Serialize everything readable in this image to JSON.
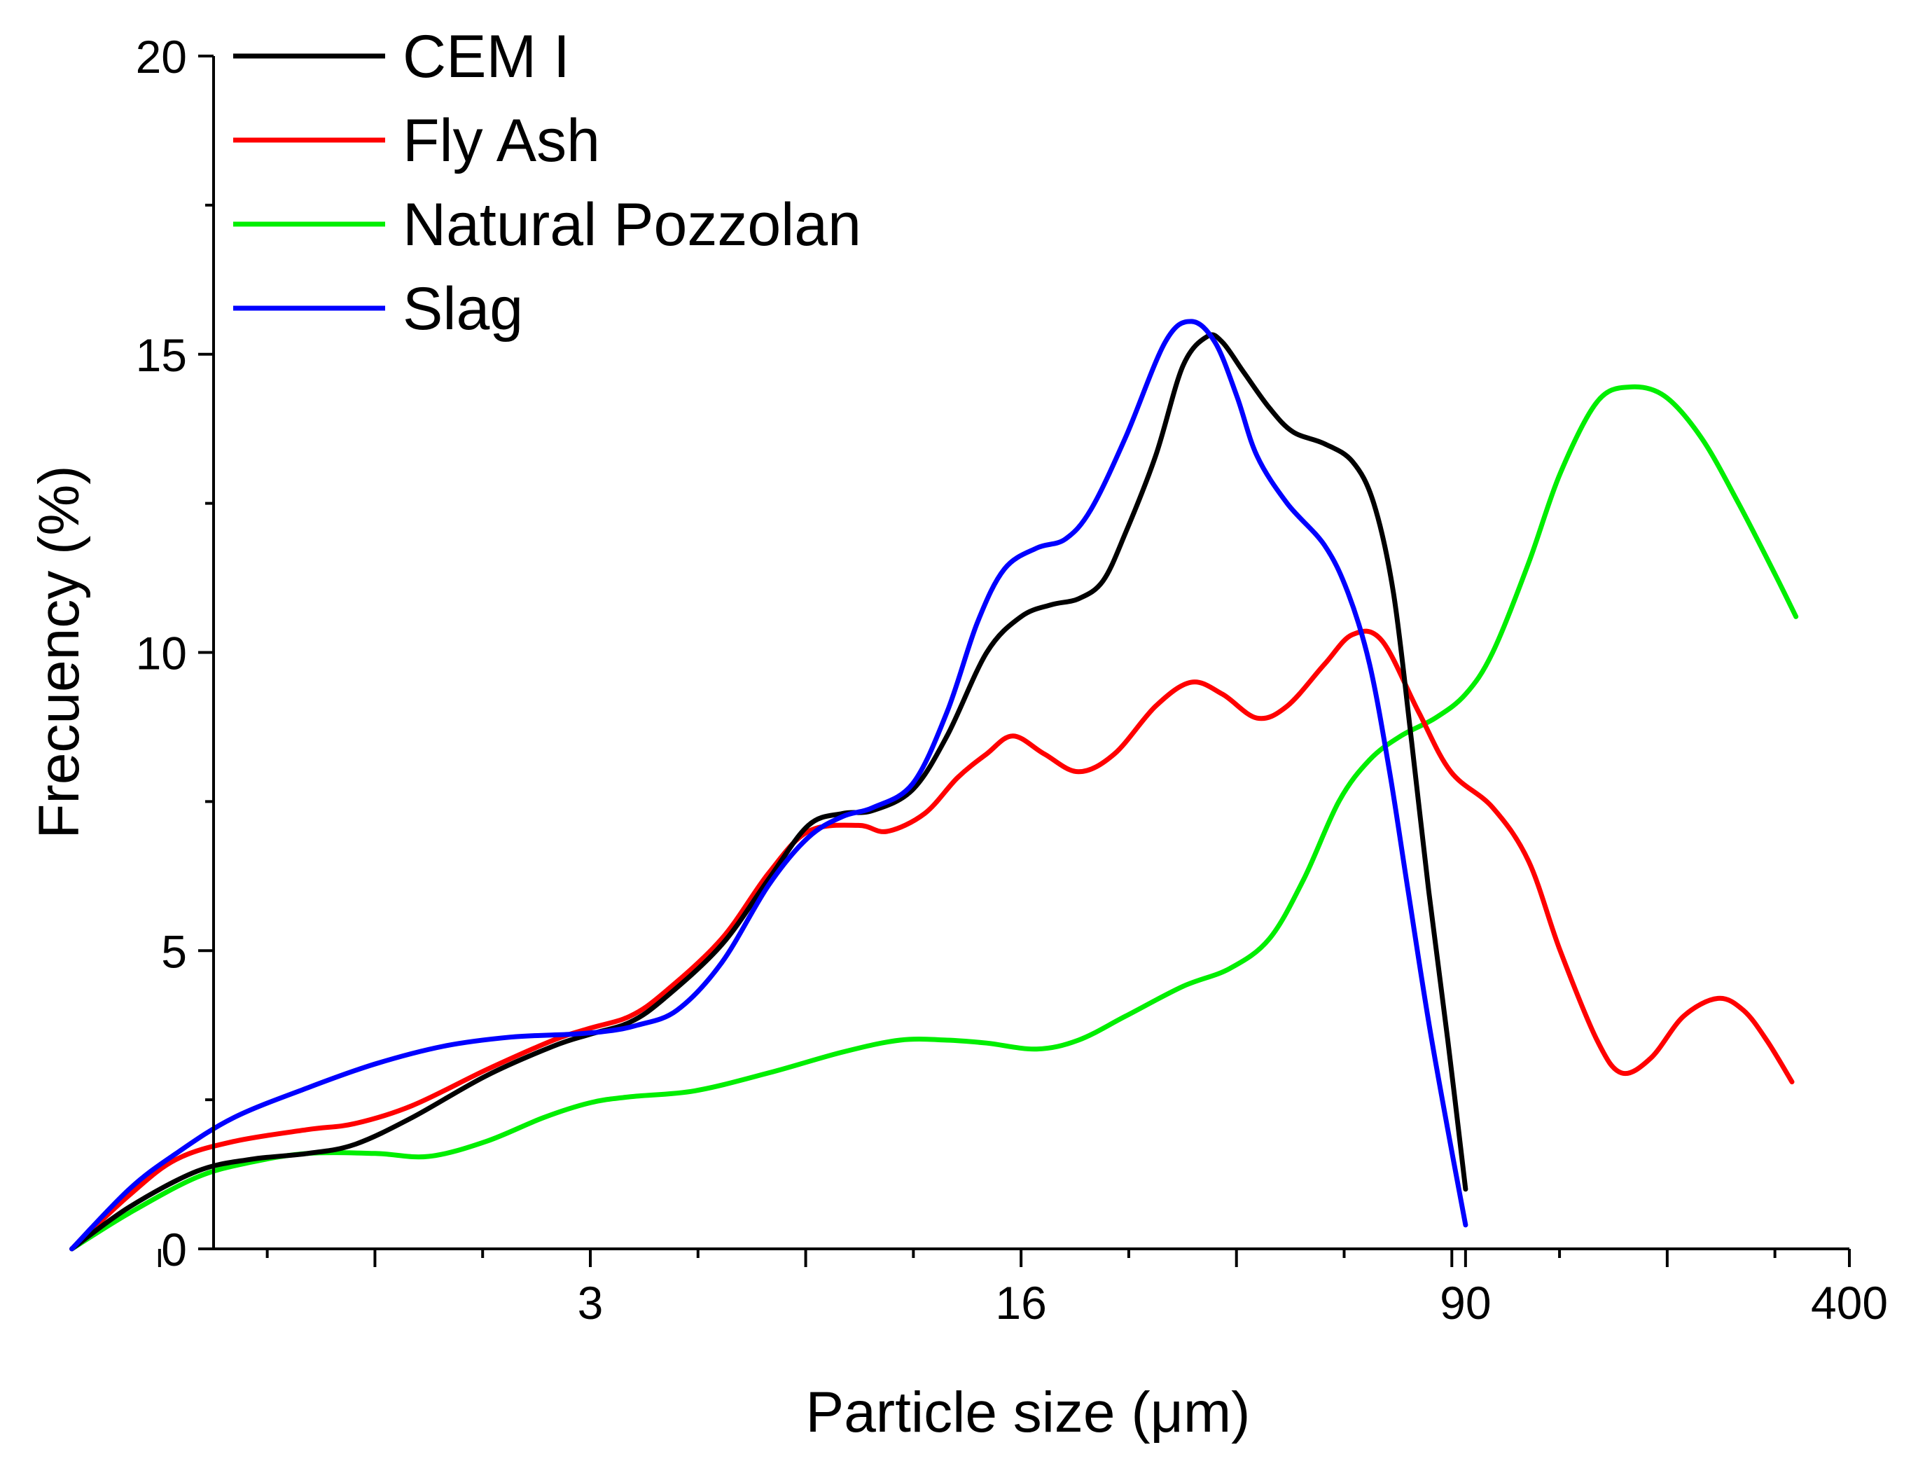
{
  "chart_data": {
    "type": "line",
    "title": "",
    "xlabel": "Particle size (μm)",
    "ylabel": "Frecuency (%)",
    "ylim": [
      0,
      20
    ],
    "yticks": [
      "0",
      "5",
      "10",
      "15",
      "20"
    ],
    "xticks": [
      "3",
      "16",
      "90",
      "400"
    ],
    "xscale": "log",
    "legend_position": "top-left",
    "series": [
      {
        "name": "CEM I",
        "color": "#000000",
        "points": [
          [
            0.4,
            0
          ],
          [
            0.5,
            0.7
          ],
          [
            0.65,
            1.3
          ],
          [
            0.8,
            1.5
          ],
          [
            1.0,
            1.6
          ],
          [
            1.2,
            1.75
          ],
          [
            1.5,
            2.2
          ],
          [
            2.0,
            2.9
          ],
          [
            2.6,
            3.4
          ],
          [
            3.0,
            3.6
          ],
          [
            3.5,
            3.8
          ],
          [
            4.0,
            4.2
          ],
          [
            5.0,
            5.1
          ],
          [
            6.0,
            6.2
          ],
          [
            7.0,
            7.1
          ],
          [
            8.0,
            7.3
          ],
          [
            9.0,
            7.35
          ],
          [
            10.5,
            7.7
          ],
          [
            12.0,
            8.6
          ],
          [
            14.0,
            10.0
          ],
          [
            16.0,
            10.6
          ],
          [
            18.0,
            10.8
          ],
          [
            20.0,
            10.9
          ],
          [
            22.0,
            11.2
          ],
          [
            24.0,
            12.0
          ],
          [
            27.0,
            13.3
          ],
          [
            30.0,
            14.8
          ],
          [
            33.0,
            15.3
          ],
          [
            35.0,
            15.2
          ],
          [
            38.0,
            14.7
          ],
          [
            42.0,
            14.1
          ],
          [
            46.0,
            13.7
          ],
          [
            52.0,
            13.5
          ],
          [
            58.0,
            13.2
          ],
          [
            63.0,
            12.5
          ],
          [
            68.0,
            11.0
          ],
          [
            73.0,
            8.5
          ],
          [
            78.0,
            6.0
          ],
          [
            84.0,
            3.5
          ],
          [
            90.0,
            1.0
          ]
        ]
      },
      {
        "name": "Fly Ash",
        "color": "#ff0000",
        "points": [
          [
            0.4,
            0
          ],
          [
            0.5,
            0.9
          ],
          [
            0.6,
            1.5
          ],
          [
            0.75,
            1.8
          ],
          [
            1.0,
            2.0
          ],
          [
            1.2,
            2.1
          ],
          [
            1.5,
            2.4
          ],
          [
            2.0,
            3.0
          ],
          [
            2.6,
            3.5
          ],
          [
            3.0,
            3.7
          ],
          [
            3.5,
            3.9
          ],
          [
            4.0,
            4.3
          ],
          [
            5.0,
            5.2
          ],
          [
            6.0,
            6.3
          ],
          [
            7.0,
            7.0
          ],
          [
            8.5,
            7.1
          ],
          [
            9.5,
            7.0
          ],
          [
            11.0,
            7.3
          ],
          [
            12.5,
            7.9
          ],
          [
            14.0,
            8.3
          ],
          [
            15.5,
            8.6
          ],
          [
            17.5,
            8.3
          ],
          [
            20.0,
            8.0
          ],
          [
            23.0,
            8.3
          ],
          [
            27.0,
            9.1
          ],
          [
            31.0,
            9.5
          ],
          [
            35.0,
            9.3
          ],
          [
            40.0,
            8.9
          ],
          [
            45.0,
            9.1
          ],
          [
            52.0,
            9.8
          ],
          [
            58.0,
            10.3
          ],
          [
            65.0,
            10.2
          ],
          [
            75.0,
            9.0
          ],
          [
            85.0,
            8.0
          ],
          [
            100.0,
            7.4
          ],
          [
            115.0,
            6.5
          ],
          [
            130.0,
            5.0
          ],
          [
            150.0,
            3.5
          ],
          [
            165.0,
            2.95
          ],
          [
            185.0,
            3.2
          ],
          [
            210.0,
            3.9
          ],
          [
            240.0,
            4.2
          ],
          [
            265.0,
            4.0
          ],
          [
            290.0,
            3.5
          ],
          [
            320.0,
            2.8
          ]
        ]
      },
      {
        "name": "Natural Pozzolan",
        "color": "#00ee00",
        "points": [
          [
            0.4,
            0
          ],
          [
            0.5,
            0.6
          ],
          [
            0.65,
            1.2
          ],
          [
            0.8,
            1.45
          ],
          [
            1.0,
            1.6
          ],
          [
            1.3,
            1.6
          ],
          [
            1.6,
            1.55
          ],
          [
            2.0,
            1.8
          ],
          [
            2.5,
            2.2
          ],
          [
            3.0,
            2.45
          ],
          [
            3.5,
            2.55
          ],
          [
            4.5,
            2.65
          ],
          [
            6.0,
            2.95
          ],
          [
            8.0,
            3.3
          ],
          [
            10.0,
            3.5
          ],
          [
            12.0,
            3.5
          ],
          [
            14.0,
            3.45
          ],
          [
            17.0,
            3.35
          ],
          [
            20.0,
            3.5
          ],
          [
            24.0,
            3.9
          ],
          [
            30.0,
            4.4
          ],
          [
            36.0,
            4.7
          ],
          [
            42.0,
            5.2
          ],
          [
            48.0,
            6.2
          ],
          [
            55.0,
            7.5
          ],
          [
            62.0,
            8.2
          ],
          [
            70.0,
            8.6
          ],
          [
            80.0,
            8.9
          ],
          [
            90.0,
            9.3
          ],
          [
            100.0,
            10.0
          ],
          [
            115.0,
            11.5
          ],
          [
            130.0,
            13.0
          ],
          [
            150.0,
            14.2
          ],
          [
            170.0,
            14.45
          ],
          [
            195.0,
            14.3
          ],
          [
            225.0,
            13.6
          ],
          [
            260.0,
            12.5
          ],
          [
            300.0,
            11.3
          ],
          [
            325.0,
            10.6
          ]
        ]
      },
      {
        "name": "Slag",
        "color": "#0000ff",
        "points": [
          [
            0.4,
            0
          ],
          [
            0.5,
            1.0
          ],
          [
            0.6,
            1.6
          ],
          [
            0.75,
            2.2
          ],
          [
            1.0,
            2.7
          ],
          [
            1.3,
            3.1
          ],
          [
            1.7,
            3.4
          ],
          [
            2.2,
            3.55
          ],
          [
            2.8,
            3.6
          ],
          [
            3.2,
            3.65
          ],
          [
            3.6,
            3.75
          ],
          [
            4.2,
            4.0
          ],
          [
            5.0,
            4.8
          ],
          [
            6.0,
            6.1
          ],
          [
            7.0,
            6.9
          ],
          [
            8.0,
            7.25
          ],
          [
            9.0,
            7.4
          ],
          [
            10.5,
            7.8
          ],
          [
            12.0,
            9.0
          ],
          [
            13.5,
            10.5
          ],
          [
            15.0,
            11.4
          ],
          [
            17.0,
            11.75
          ],
          [
            19.0,
            11.9
          ],
          [
            21.0,
            12.4
          ],
          [
            24.0,
            13.6
          ],
          [
            28.0,
            15.2
          ],
          [
            31.0,
            15.55
          ],
          [
            34.0,
            15.2
          ],
          [
            37.0,
            14.3
          ],
          [
            40.0,
            13.3
          ],
          [
            45.0,
            12.5
          ],
          [
            52.0,
            11.8
          ],
          [
            57.0,
            11.0
          ],
          [
            62.0,
            9.8
          ],
          [
            67.0,
            8.0
          ],
          [
            72.0,
            6.0
          ],
          [
            78.0,
            3.8
          ],
          [
            84.0,
            2.0
          ],
          [
            90.0,
            0.4
          ]
        ]
      }
    ]
  }
}
